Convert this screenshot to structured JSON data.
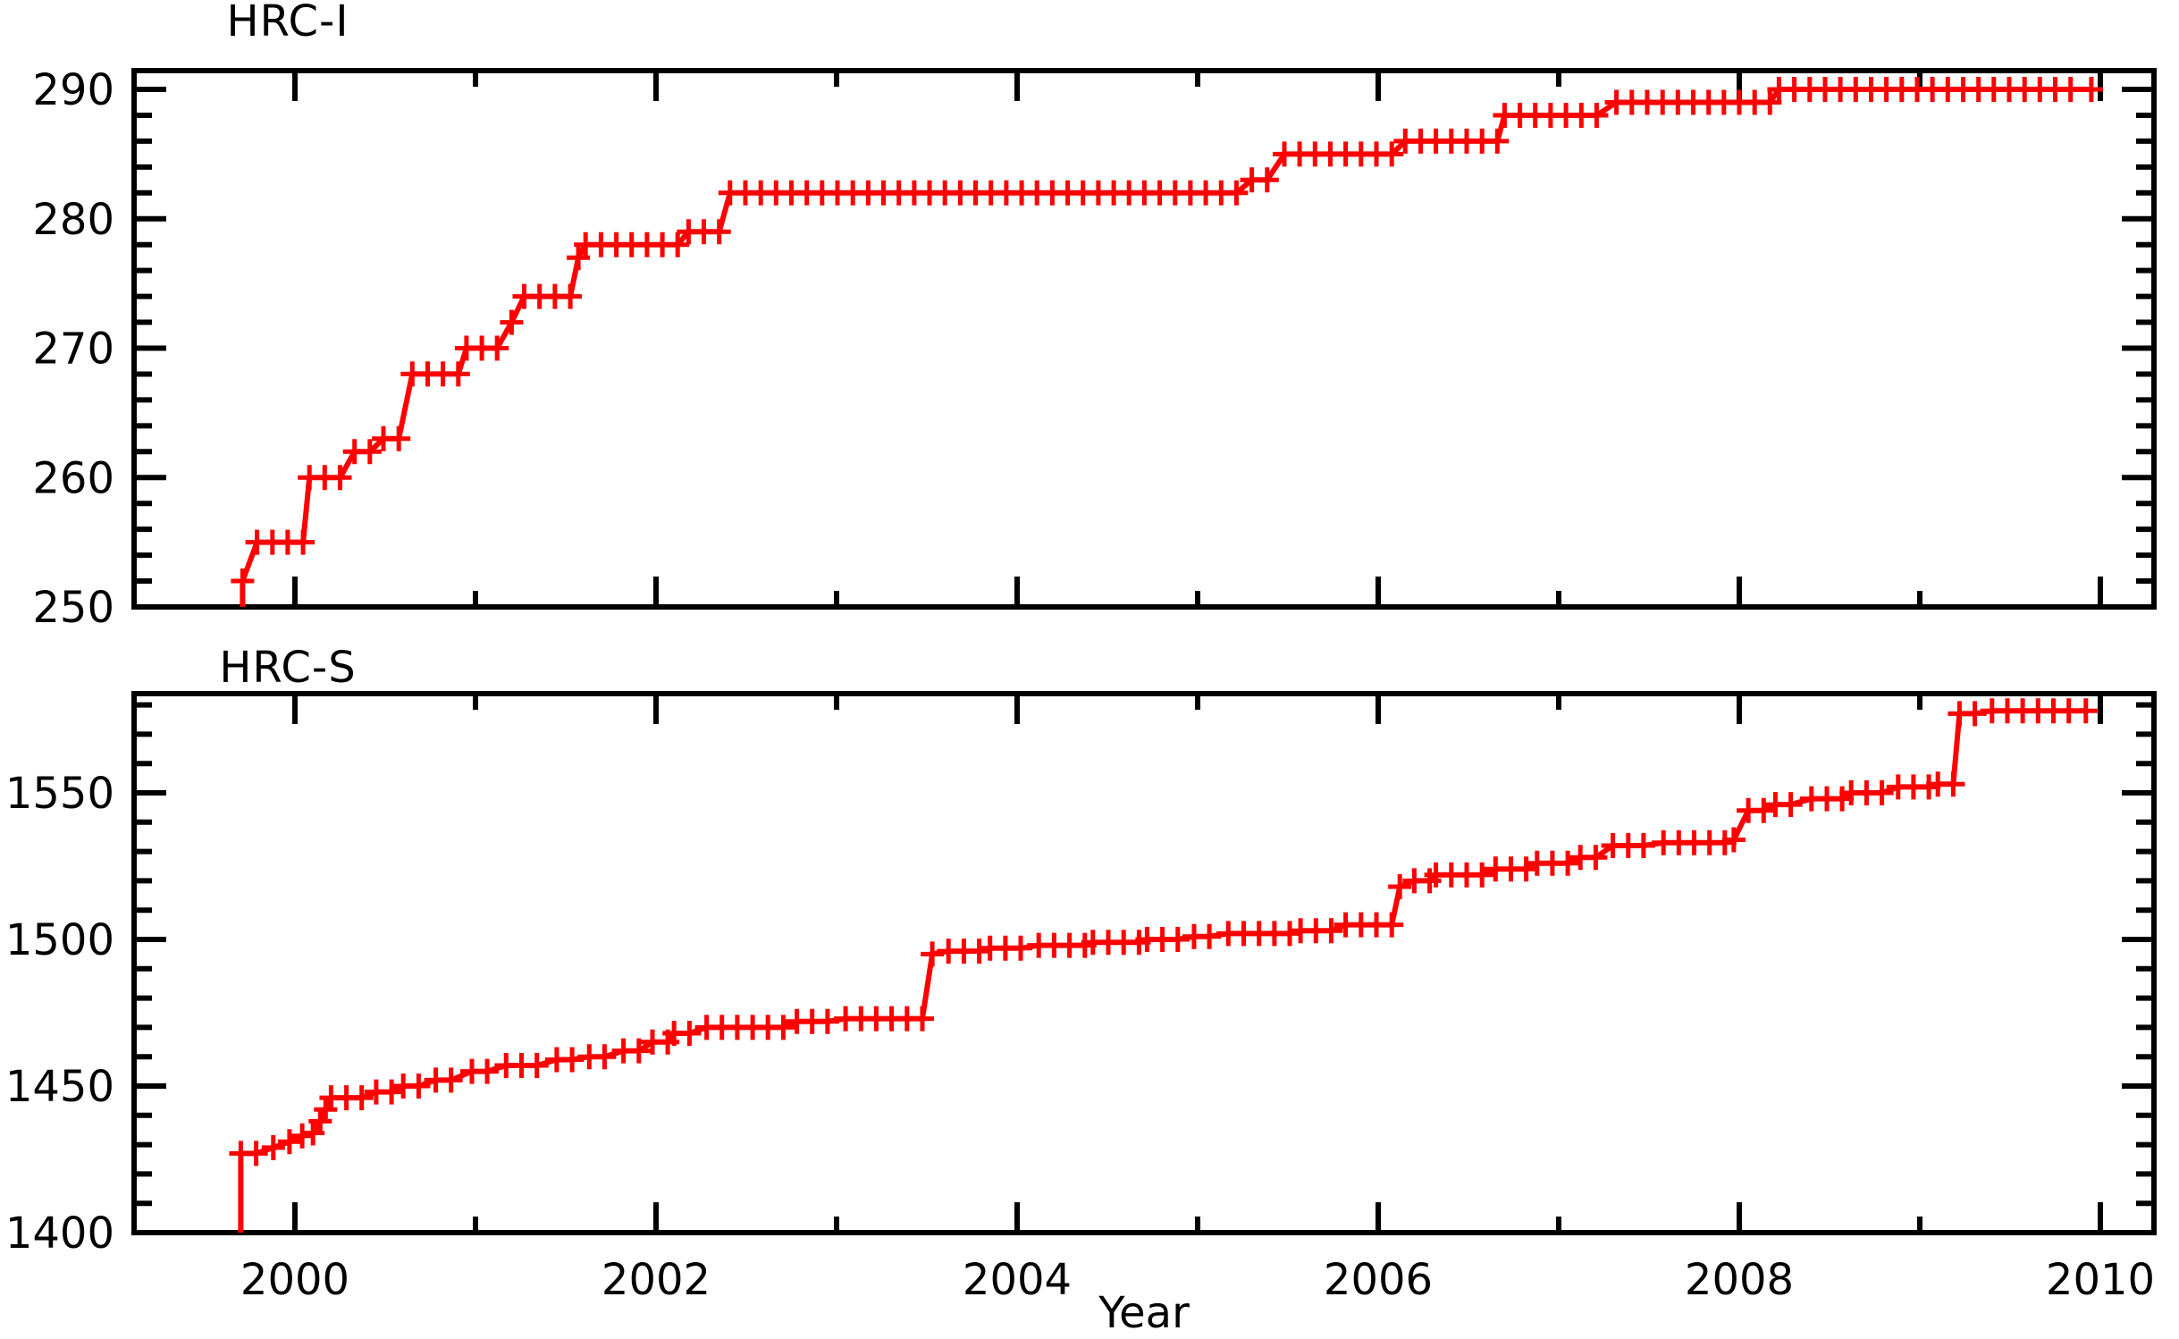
{
  "figure": {
    "background": "#ffffff",
    "axis_color": "#000000",
    "accent_red": "#ff0000"
  },
  "chart_data": [
    {
      "type": "line",
      "title": "HRC-I",
      "xlabel": "Year",
      "ylabel": "",
      "legend": "none",
      "grid": false,
      "marker": "plus",
      "color": "#ff0000",
      "x_range": [
        1999.11,
        2010.31
      ],
      "ylim": [
        250,
        291.4
      ],
      "y_major_ticks": [
        250,
        260,
        270,
        280,
        290
      ],
      "y_tick_labels": [
        "250",
        "260",
        "270",
        "280",
        "290"
      ],
      "y_minor_step": 2,
      "x_major_ticks": [
        2000,
        2002,
        2004,
        2006,
        2008,
        2010
      ],
      "x_minor_ticks": [
        2001,
        2003,
        2005,
        2007,
        2009
      ],
      "x_tick_labels": [],
      "start_year": 1999.71,
      "end_year": 2009.95,
      "clip_start_value": 250,
      "steps": [
        [
          1999.71,
          252
        ],
        [
          1999.79,
          255
        ],
        [
          2000.08,
          260
        ],
        [
          2000.33,
          262
        ],
        [
          2000.49,
          263
        ],
        [
          2000.65,
          268
        ],
        [
          2000.95,
          270
        ],
        [
          2001.2,
          272
        ],
        [
          2001.27,
          274
        ],
        [
          2001.57,
          277
        ],
        [
          2001.61,
          278
        ],
        [
          2002.18,
          279
        ],
        [
          2002.41,
          282
        ],
        [
          2005.3,
          283
        ],
        [
          2005.48,
          285
        ],
        [
          2006.15,
          286
        ],
        [
          2006.7,
          288
        ],
        [
          2007.32,
          289
        ],
        [
          2008.22,
          290
        ]
      ]
    },
    {
      "type": "line",
      "title": "HRC-S",
      "xlabel": "Year",
      "ylabel": "",
      "legend": "none",
      "grid": false,
      "marker": "plus",
      "color": "#ff0000",
      "x_range": [
        1999.11,
        2010.31
      ],
      "ylim": [
        1400,
        1583.8
      ],
      "y_major_ticks": [
        1400,
        1450,
        1500,
        1550
      ],
      "y_tick_labels": [
        "1400",
        "1450",
        "1500",
        "1550"
      ],
      "y_minor_step": 10,
      "x_major_ticks": [
        2000,
        2002,
        2004,
        2006,
        2008,
        2010
      ],
      "x_minor_ticks": [
        2001,
        2003,
        2005,
        2007,
        2009
      ],
      "x_tick_labels": [
        "2000",
        "2002",
        "2004",
        "2006",
        "2008",
        "2010"
      ],
      "start_year": 1999.7,
      "end_year": 2009.92,
      "clip_start_value": 1400,
      "steps": [
        [
          1999.7,
          1427
        ],
        [
          1999.88,
          1429
        ],
        [
          1999.97,
          1431
        ],
        [
          2000.04,
          1433
        ],
        [
          2000.1,
          1434
        ],
        [
          2000.14,
          1438
        ],
        [
          2000.17,
          1442
        ],
        [
          2000.2,
          1446
        ],
        [
          2000.45,
          1448
        ],
        [
          2000.6,
          1450
        ],
        [
          2000.78,
          1452
        ],
        [
          2000.98,
          1455
        ],
        [
          2001.17,
          1457
        ],
        [
          2001.45,
          1459
        ],
        [
          2001.63,
          1460
        ],
        [
          2001.82,
          1462
        ],
        [
          2001.98,
          1465
        ],
        [
          2002.1,
          1468
        ],
        [
          2002.28,
          1470
        ],
        [
          2002.78,
          1472
        ],
        [
          2003.05,
          1473
        ],
        [
          2003.53,
          1495
        ],
        [
          2003.62,
          1496
        ],
        [
          2003.85,
          1497
        ],
        [
          2004.12,
          1498
        ],
        [
          2004.42,
          1499
        ],
        [
          2004.72,
          1500
        ],
        [
          2004.98,
          1501
        ],
        [
          2005.17,
          1502
        ],
        [
          2005.57,
          1503
        ],
        [
          2005.82,
          1505
        ],
        [
          2006.12,
          1518
        ],
        [
          2006.2,
          1520
        ],
        [
          2006.32,
          1522
        ],
        [
          2006.65,
          1524
        ],
        [
          2006.88,
          1526
        ],
        [
          2007.12,
          1528
        ],
        [
          2007.3,
          1532
        ],
        [
          2007.58,
          1533
        ],
        [
          2007.97,
          1534
        ],
        [
          2008.05,
          1544
        ],
        [
          2008.2,
          1546
        ],
        [
          2008.4,
          1548
        ],
        [
          2008.62,
          1550
        ],
        [
          2008.88,
          1552
        ],
        [
          2009.1,
          1553
        ],
        [
          2009.22,
          1577
        ],
        [
          2009.4,
          1578
        ]
      ]
    }
  ],
  "layout_note": "cumulative exposure step curves for Chandra HRC-I and HRC-S detectors versus year"
}
